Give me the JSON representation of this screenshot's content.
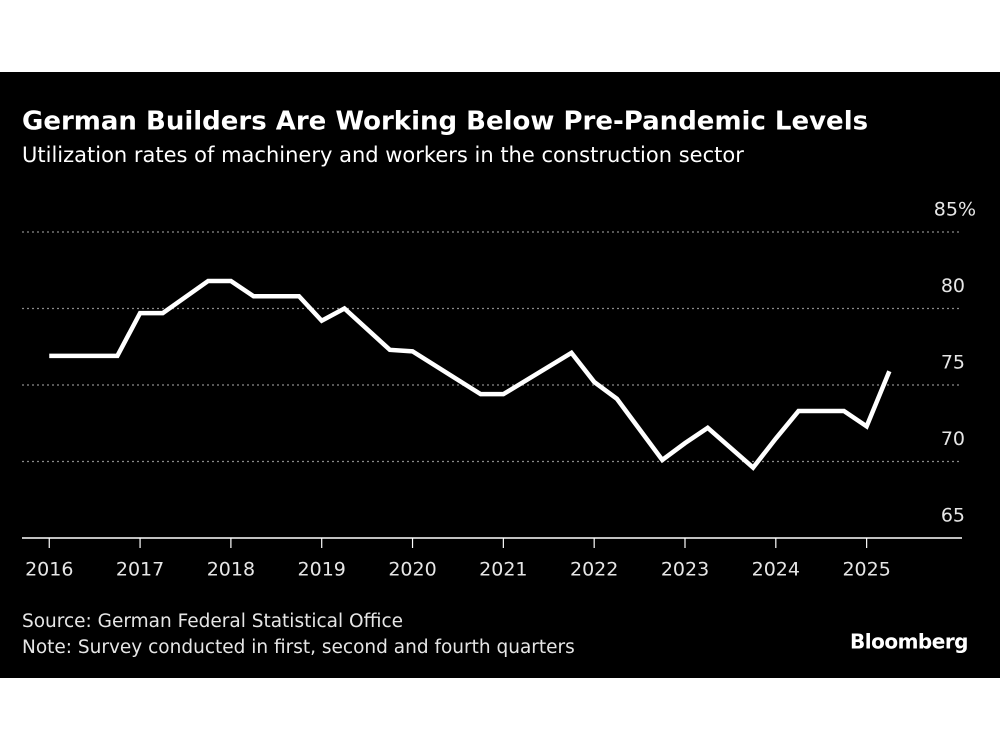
{
  "chart_data": {
    "type": "line",
    "title": "German Builders Are Working Below Pre-Pandemic Levels",
    "subtitle": "Utilization rates of machinery and workers in the construction sector",
    "source": "Source: German Federal Statistical Office",
    "note": "Note: Survey conducted in first, second and fourth quarters",
    "brand": "Bloomberg",
    "x": [
      2016,
      2016.25,
      2016.75,
      2017,
      2017.25,
      2017.75,
      2018,
      2018.25,
      2018.75,
      2019,
      2019.25,
      2019.75,
      2020,
      2020.75,
      2021,
      2021.75,
      2022,
      2022.25,
      2022.75,
      2023,
      2023.25,
      2023.75,
      2024,
      2024.25,
      2024.75,
      2025,
      2025.25
    ],
    "series": [
      {
        "color": "#ffffff",
        "values": [
          76.9,
          76.9,
          76.9,
          79.7,
          79.7,
          81.8,
          81.8,
          80.8,
          80.8,
          79.2,
          80.0,
          77.3,
          77.2,
          74.4,
          74.4,
          77.1,
          75.2,
          74.1,
          70.1,
          71.2,
          72.2,
          69.6,
          71.5,
          73.3,
          73.3,
          72.3,
          75.9
        ]
      }
    ],
    "xlim": [
      2015.7,
      2026.05
    ],
    "xticks": [
      2016,
      2017,
      2018,
      2019,
      2020,
      2021,
      2022,
      2023,
      2024,
      2025
    ],
    "ylim": [
      65,
      85
    ],
    "yticks": [
      65,
      70,
      75,
      80,
      {
        "value": 85,
        "label": "85%"
      }
    ],
    "grid": true
  }
}
